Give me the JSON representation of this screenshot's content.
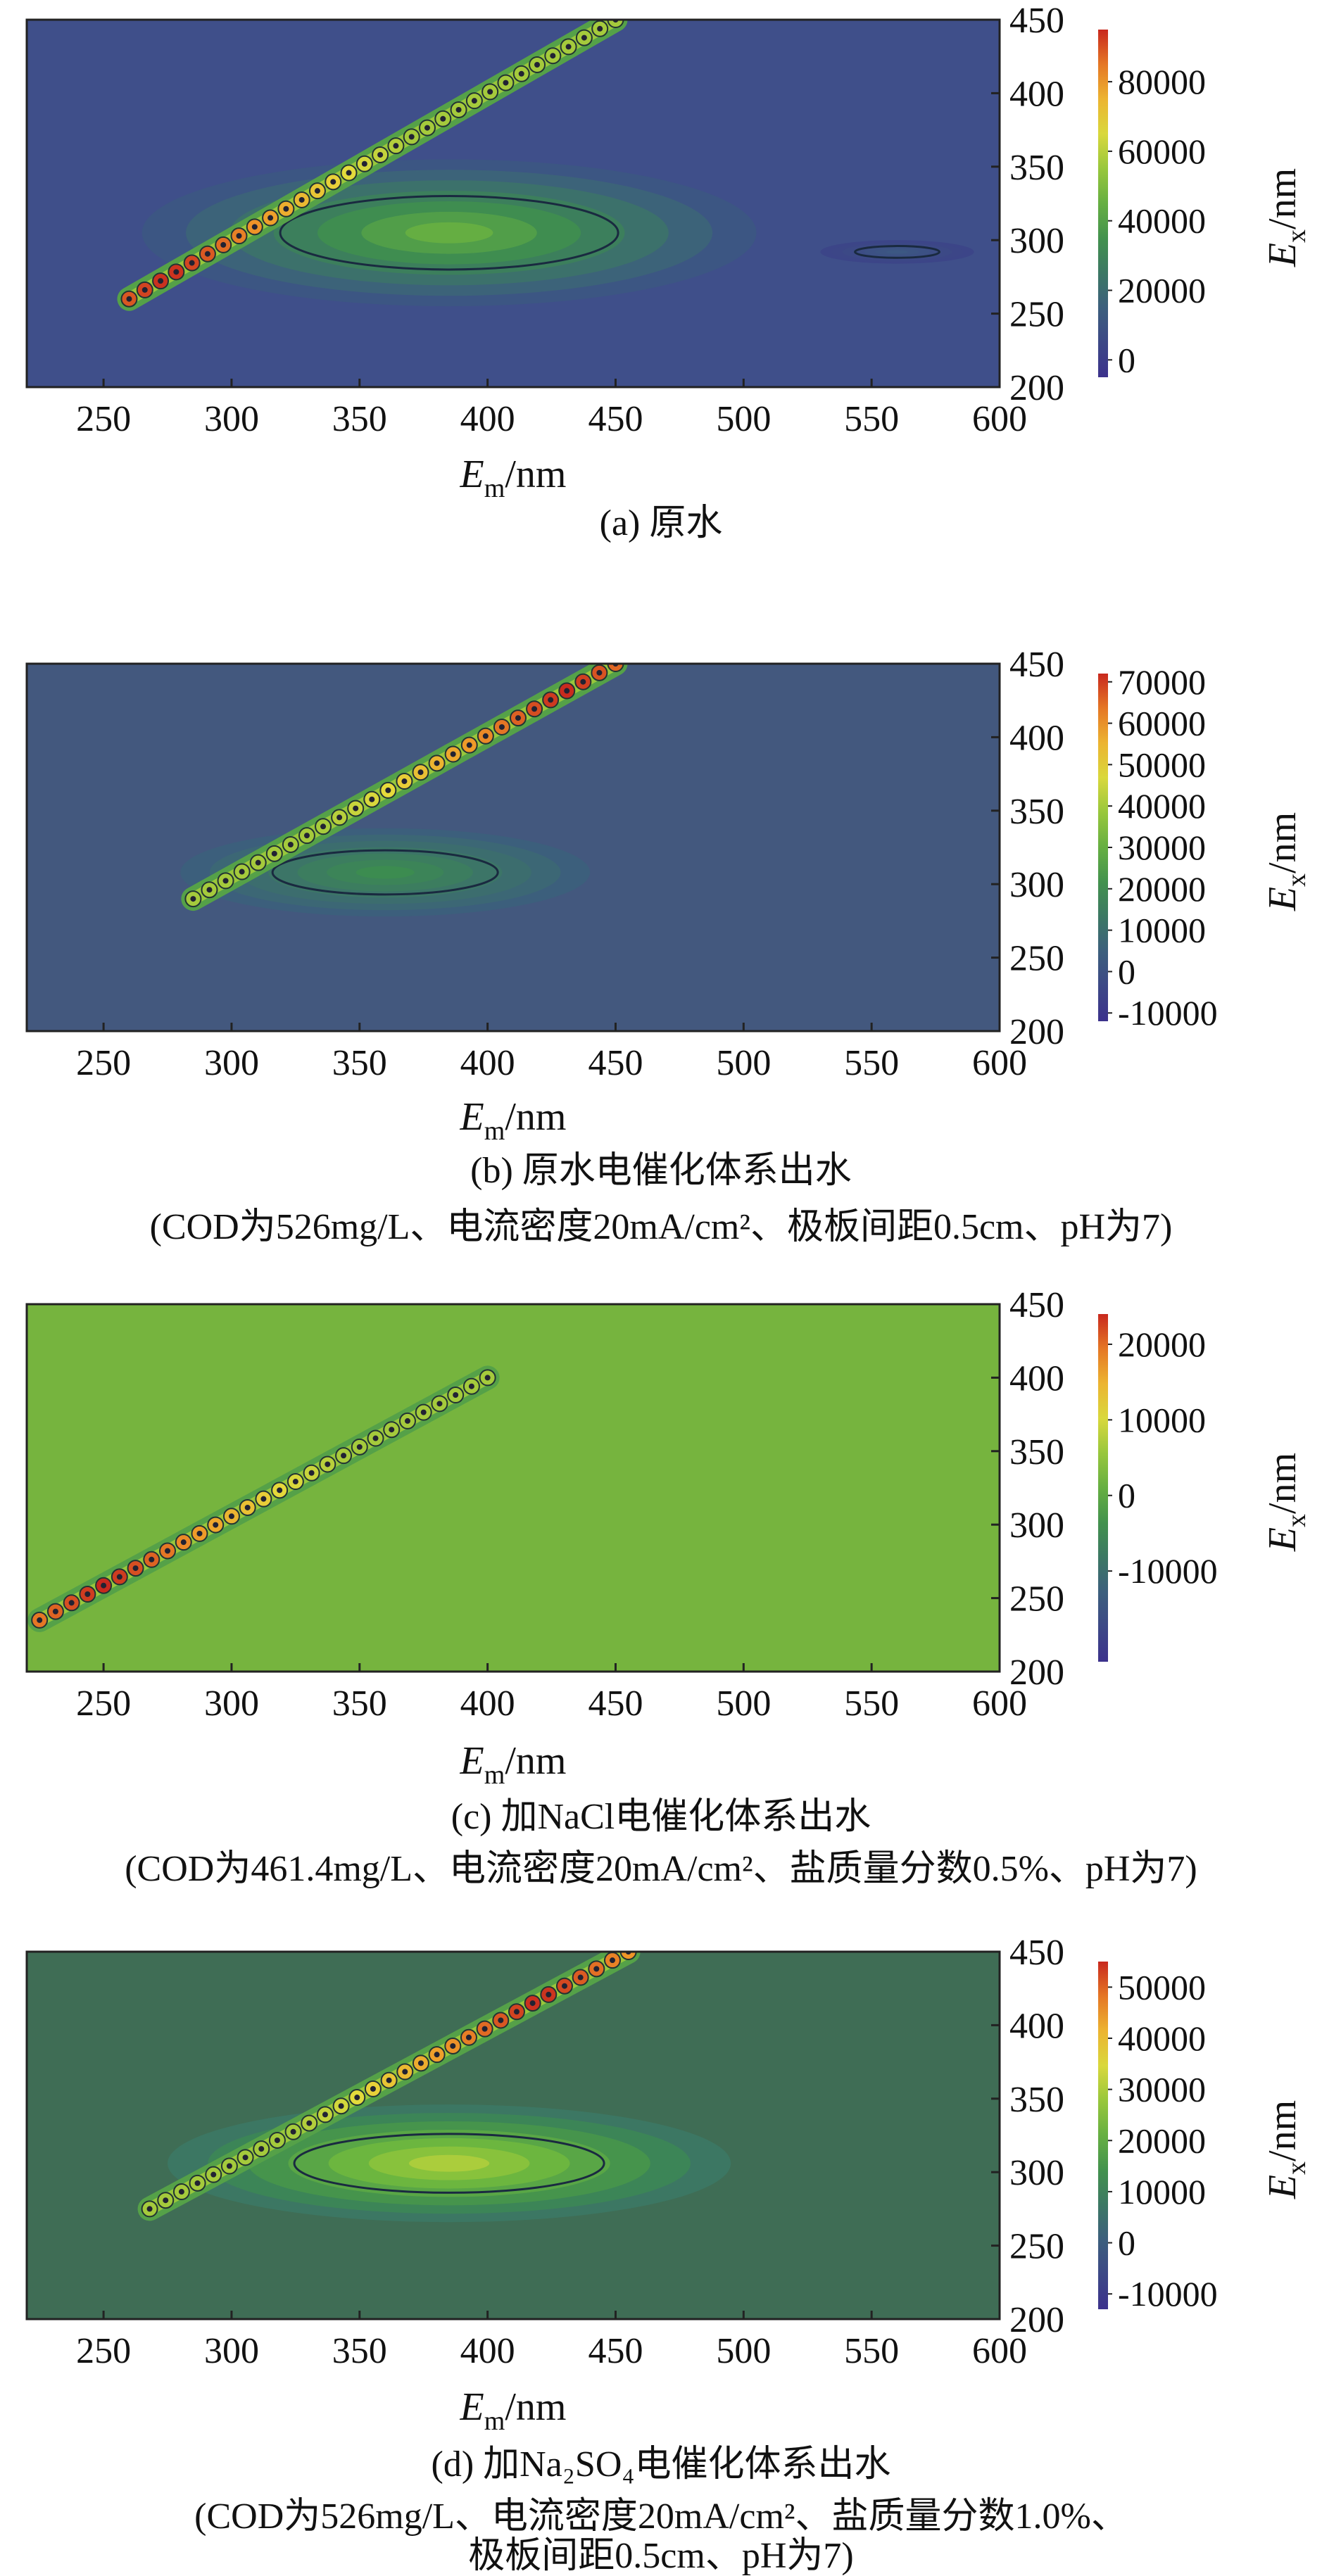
{
  "chart_data": [
    {
      "type": "heatmap",
      "caption": "(a) 原水",
      "caption_extra": [],
      "xlabel_main": "E",
      "xlabel_sub": "m",
      "xlabel_unit": "/nm",
      "ylabel_main": "E",
      "ylabel_sub": "x",
      "ylabel_unit": "/nm",
      "xlim": [
        220,
        600
      ],
      "ylim": [
        200,
        450
      ],
      "xticks": [
        "250",
        "300",
        "350",
        "400",
        "450",
        "500",
        "550",
        "600"
      ],
      "yticks": [
        "200",
        "250",
        "300",
        "350",
        "400",
        "450"
      ],
      "colorbar": {
        "min": -5000,
        "max": 95000,
        "ticks": [
          "0",
          "20000",
          "40000",
          "60000",
          "80000"
        ]
      },
      "background_color": "#3f4f8a",
      "rayleigh_line": {
        "x": [
          260,
          450
        ],
        "y": [
          260,
          450
        ],
        "peak_near_x": 275
      },
      "peaks": [
        {
          "x": 385,
          "y": 305,
          "value": 45000,
          "rx": 120,
          "ry": 50
        },
        {
          "x": 560,
          "y": 292,
          "value": 12000,
          "rx": 30,
          "ry": 8
        }
      ]
    },
    {
      "type": "heatmap",
      "caption": "(b) 原水电催化体系出水",
      "caption_extra": [
        "(COD为526mg/L、电流密度20mA/cm²、极板间距0.5cm、pH为7)"
      ],
      "xlabel_main": "E",
      "xlabel_sub": "m",
      "xlabel_unit": "/nm",
      "ylabel_main": "E",
      "ylabel_sub": "x",
      "ylabel_unit": "/nm",
      "xlim": [
        220,
        600
      ],
      "ylim": [
        200,
        450
      ],
      "xticks": [
        "250",
        "300",
        "350",
        "400",
        "450",
        "500",
        "550",
        "600"
      ],
      "yticks": [
        "200",
        "250",
        "300",
        "350",
        "400",
        "450"
      ],
      "colorbar": {
        "min": -12000,
        "max": 72000,
        "ticks": [
          "-10000",
          "0",
          "10000",
          "20000",
          "30000",
          "40000",
          "50000",
          "60000",
          "70000"
        ]
      },
      "background_color": "#43587e",
      "rayleigh_line": {
        "x": [
          285,
          450
        ],
        "y": [
          290,
          450
        ],
        "peak_near_x": 430
      },
      "peaks": [
        {
          "x": 360,
          "y": 308,
          "value": 20000,
          "rx": 80,
          "ry": 30
        }
      ]
    },
    {
      "type": "heatmap",
      "caption": "(c) 加NaCl电催化体系出水",
      "caption_extra": [
        "(COD为461.4mg/L、电流密度20mA/cm²、盐质量分数0.5%、pH为7)"
      ],
      "xlabel_main": "E",
      "xlabel_sub": "m",
      "xlabel_unit": "/nm",
      "ylabel_main": "E",
      "ylabel_sub": "x",
      "ylabel_unit": "/nm",
      "xlim": [
        220,
        600
      ],
      "ylim": [
        200,
        450
      ],
      "xticks": [
        "250",
        "300",
        "350",
        "400",
        "450",
        "500",
        "550",
        "600"
      ],
      "yticks": [
        "200",
        "250",
        "300",
        "350",
        "400",
        "450"
      ],
      "colorbar": {
        "min": -22000,
        "max": 24000,
        "ticks": [
          "-10000",
          "0",
          "10000",
          "20000"
        ]
      },
      "background_color": "#76b43e",
      "rayleigh_line": {
        "x": [
          225,
          400
        ],
        "y": [
          235,
          400
        ],
        "peak_near_x": 250
      },
      "peaks": []
    },
    {
      "type": "heatmap",
      "caption": "(d) 加Na₂SO₄电催化体系出水",
      "caption_extra": [
        "(COD为526mg/L、电流密度20mA/cm²、盐质量分数1.0%、",
        "极板间距0.5cm、pH为7)"
      ],
      "xlabel_main": "E",
      "xlabel_sub": "m",
      "xlabel_unit": "/nm",
      "ylabel_main": "E",
      "ylabel_sub": "x",
      "ylabel_unit": "/nm",
      "xlim": [
        220,
        600
      ],
      "ylim": [
        200,
        450
      ],
      "xticks": [
        "250",
        "300",
        "350",
        "400",
        "450",
        "500",
        "550",
        "600"
      ],
      "yticks": [
        "200",
        "250",
        "300",
        "350",
        "400",
        "450"
      ],
      "colorbar": {
        "min": -13000,
        "max": 55000,
        "ticks": [
          "-10000",
          "0",
          "10000",
          "20000",
          "30000",
          "40000",
          "50000"
        ]
      },
      "background_color": "#3f6d55",
      "rayleigh_line": {
        "x": [
          268,
          455
        ],
        "y": [
          275,
          450
        ],
        "peak_near_x": 420
      },
      "peaks": [
        {
          "x": 385,
          "y": 306,
          "value": 30000,
          "rx": 110,
          "ry": 40
        }
      ]
    }
  ]
}
